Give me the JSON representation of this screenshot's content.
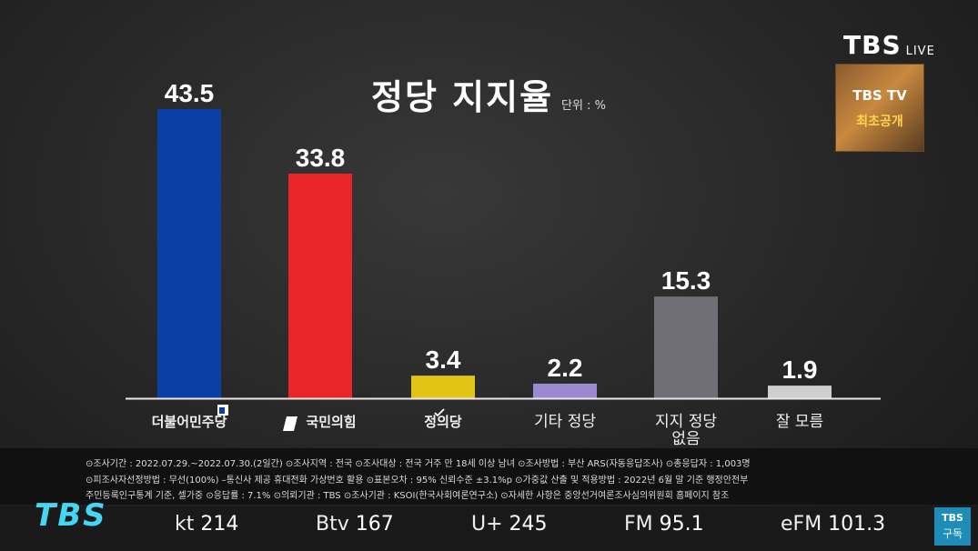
{
  "channel": {
    "logo": "TBS",
    "live": "LIVE"
  },
  "promo": {
    "line1": "TBS TV",
    "line2": "최초공개"
  },
  "chart_data": {
    "type": "bar",
    "title": "정당 지지율",
    "unit": "단위 : %",
    "categories": [
      "더불어민주당",
      "국민의힘",
      "정의당",
      "기타 정당",
      "지지 정당 없음",
      "잘 모름"
    ],
    "category_labels": [
      [
        "더불어민주당"
      ],
      [
        "국민의힘"
      ],
      [
        "정의당"
      ],
      [
        "기타 정당"
      ],
      [
        "지지 정당",
        "없음"
      ],
      [
        "잘 모름"
      ]
    ],
    "values": [
      43.5,
      33.8,
      3.4,
      2.2,
      15.3,
      1.9
    ],
    "value_labels": [
      "43.5",
      "33.8",
      "3.4",
      "2.2",
      "15.3",
      "1.9"
    ],
    "colors": [
      "#0b3fa6",
      "#e8262a",
      "#e2c417",
      "#9b8ad0",
      "#6f6f75",
      "#cfcfcf"
    ],
    "ylim": [
      0,
      45
    ],
    "grid": false
  },
  "notes": [
    "⊙조사기간 : 2022.07.29.~2022.07.30.(2일간)  ⊙조사지역 : 전국  ⊙조사대상 : 전국 거주 만 18세 이상 남녀  ⊙조사방법 : 부산 ARS(자동응답조사)  ⊙총응답자 : 1,003명",
    "⊙피조사자선정방법 : 무선(100%) –통신사 제공 휴대전화 가상번호 활용  ⊙표본오차 : 95% 신뢰수준 ±3.1%p  ⊙가중값 산출 및 적용방법 : 2022년 6월 말 기준 행정안전부",
    "주민등록인구통계 기준, 셀가중  ⊙응답률 : 7.1%  ⊙의뢰기관 : TBS  ⊙조사기관 : KSOI(한국사회여론연구소)  ⊙자세한 사항은 중앙선거여론조사심의위원회 홈페이지 참조"
  ],
  "ticker": {
    "logo": "TBS",
    "channels": [
      {
        "name": "kt",
        "num": "214"
      },
      {
        "name": "Btv",
        "num": "167"
      },
      {
        "name": "U+",
        "num": "245"
      },
      {
        "name": "FM",
        "num": "95.1"
      },
      {
        "name": "eFM",
        "num": "101.3"
      }
    ]
  },
  "subscribe": {
    "logo": "TBS",
    "label": "구독"
  }
}
